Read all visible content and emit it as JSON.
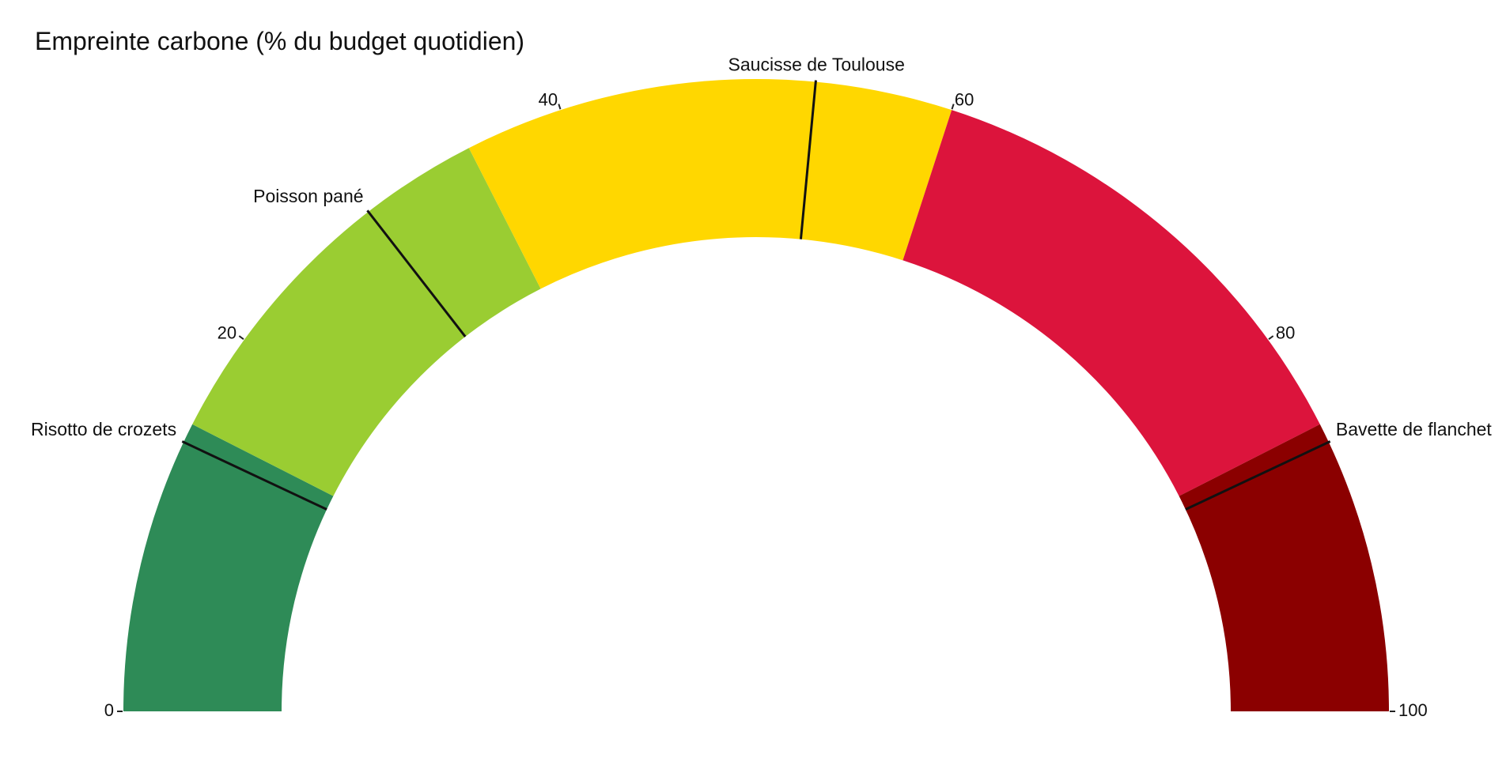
{
  "chart_data": {
    "type": "gauge",
    "title": "Empreinte carbone (% du budget quotidien)",
    "range": [
      0,
      100
    ],
    "ticks": [
      {
        "value": 0,
        "label": "0"
      },
      {
        "value": 20,
        "label": "20"
      },
      {
        "value": 40,
        "label": "40"
      },
      {
        "value": 60,
        "label": "60"
      },
      {
        "value": 80,
        "label": "80"
      },
      {
        "value": 100,
        "label": "100"
      }
    ],
    "bands": [
      {
        "from": 0,
        "to": 15,
        "color": "#2e8b57"
      },
      {
        "from": 15,
        "to": 35,
        "color": "#9acd32"
      },
      {
        "from": 35,
        "to": 60,
        "color": "#ffd700"
      },
      {
        "from": 60,
        "to": 85,
        "color": "#dc143c"
      },
      {
        "from": 85,
        "to": 100,
        "color": "#8b0000"
      }
    ],
    "markers": [
      {
        "name": "Risotto de crozets",
        "value": 14
      },
      {
        "name": "Poisson pané",
        "value": 29
      },
      {
        "name": "Saucisse de Toulouse",
        "value": 53
      },
      {
        "name": "Bavette de flanchet",
        "value": 86
      }
    ]
  }
}
